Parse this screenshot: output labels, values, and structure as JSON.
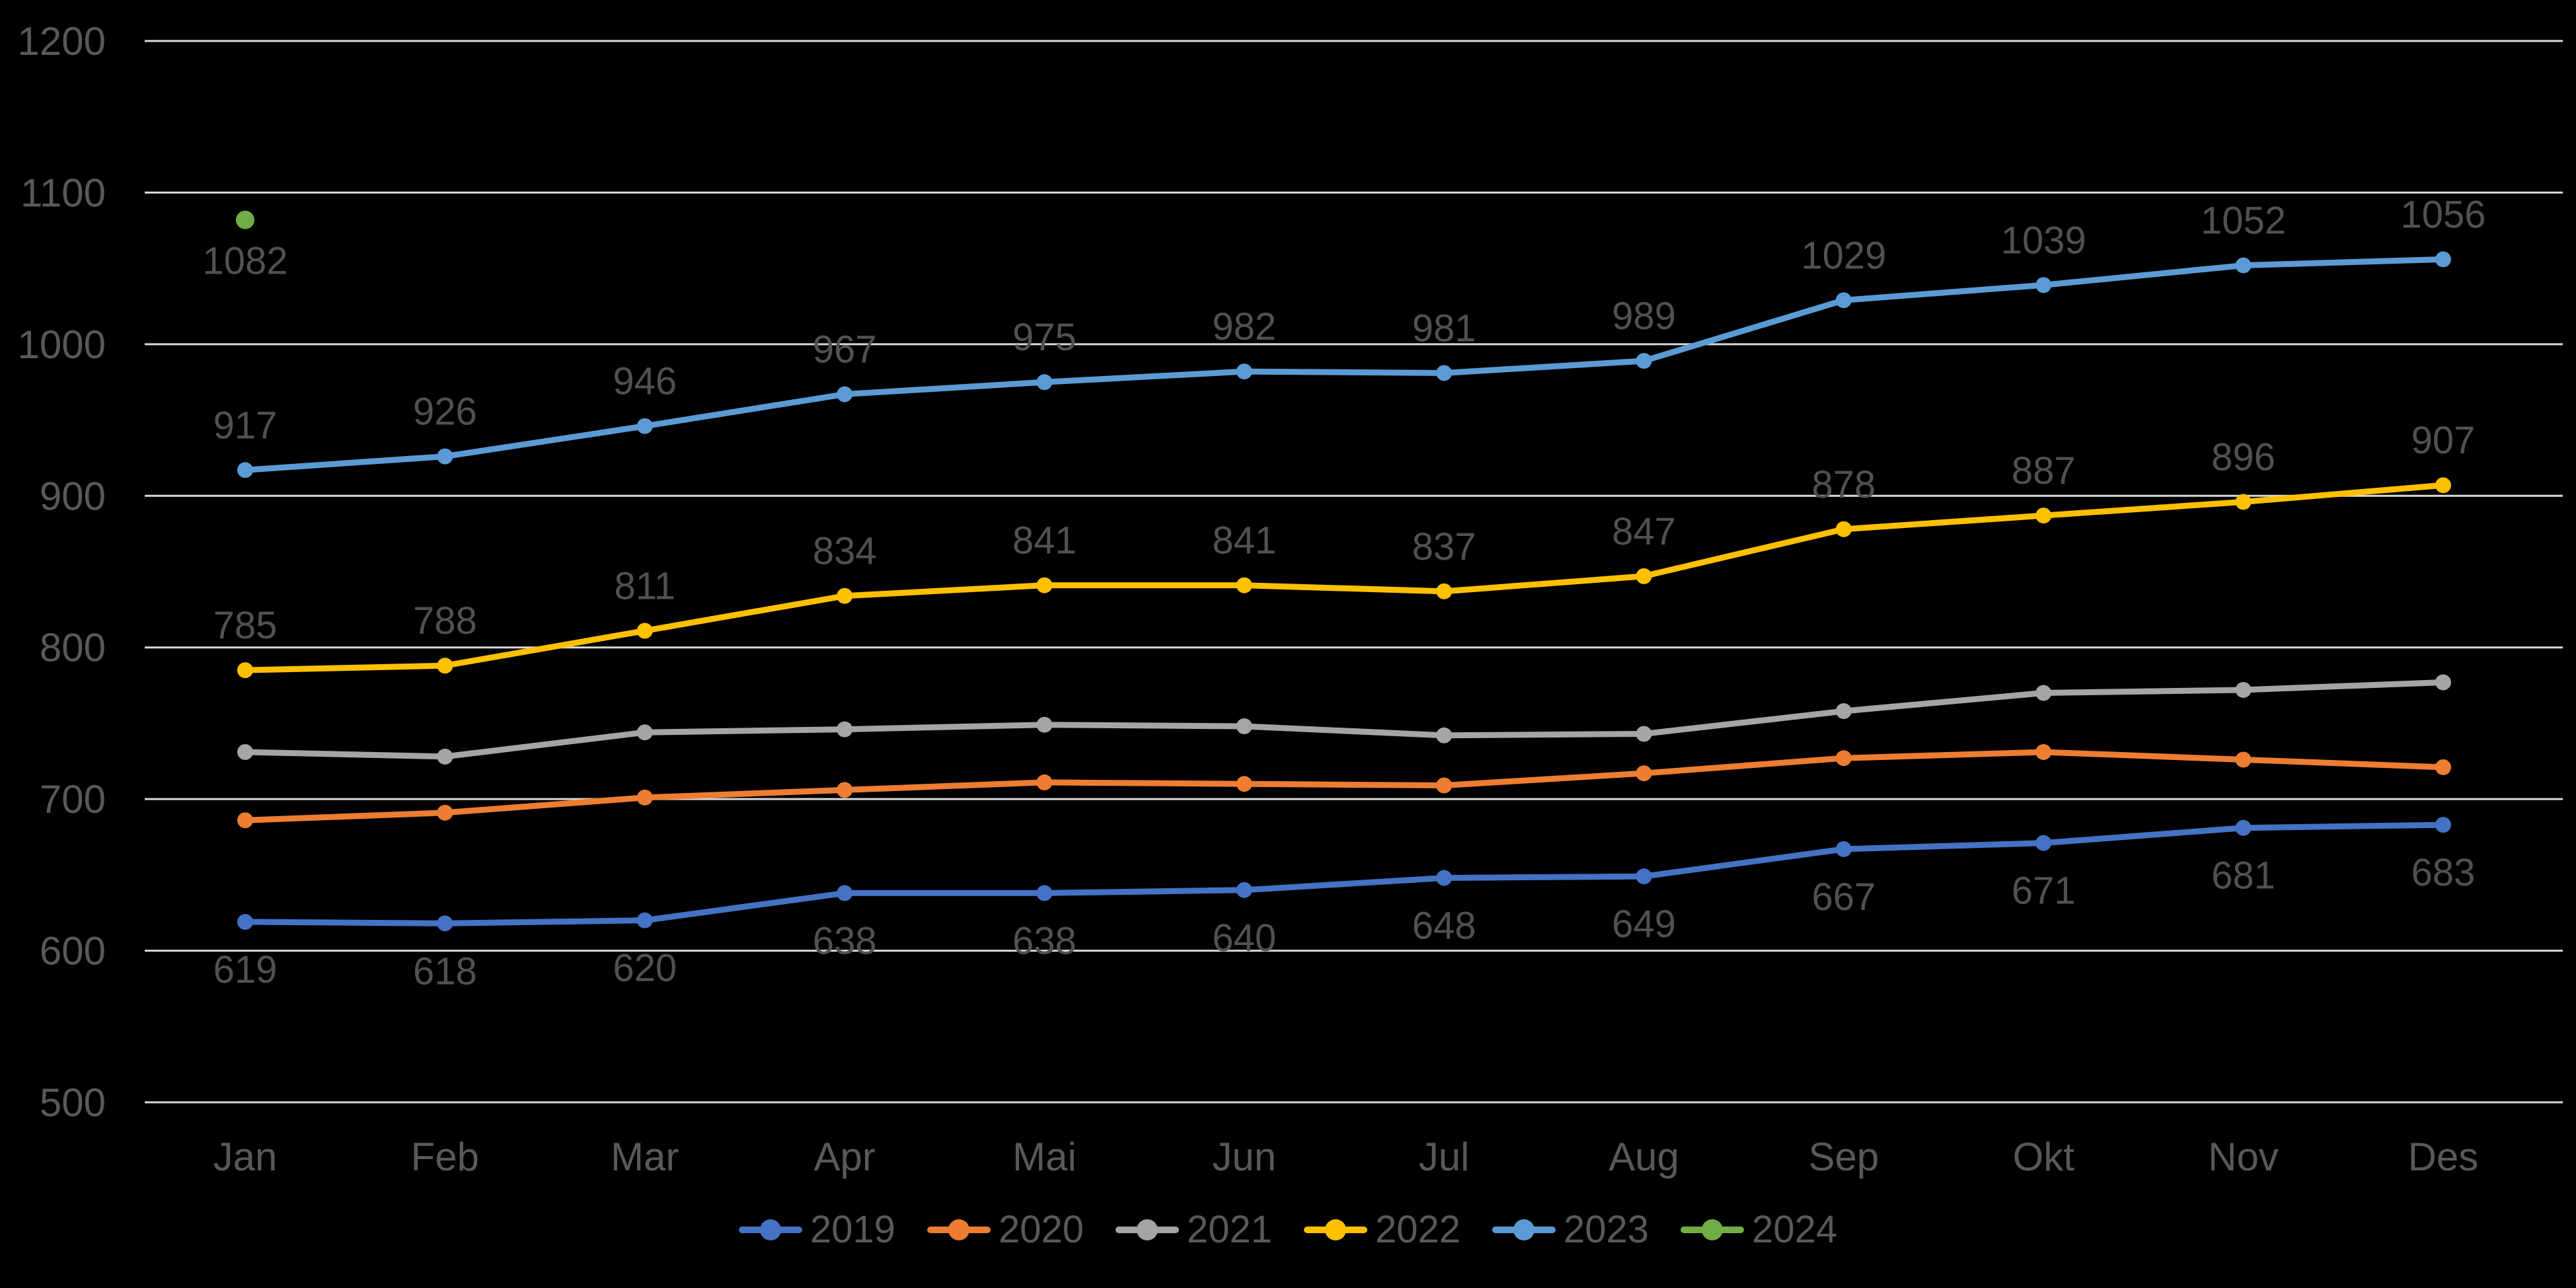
{
  "chart_data": {
    "type": "line",
    "title": "",
    "xlabel": "",
    "ylabel": "",
    "categories": [
      "Jan",
      "Feb",
      "Mar",
      "Apr",
      "Mai",
      "Jun",
      "Jul",
      "Aug",
      "Sep",
      "Okt",
      "Nov",
      "Des"
    ],
    "y_axis": {
      "min": 500,
      "max": 1200,
      "step": 100,
      "tick_labels": [
        "500",
        "600",
        "700",
        "800",
        "900",
        "1000",
        "1100",
        "1200"
      ]
    },
    "grid": true,
    "legend_position": "bottom",
    "colors": {
      "background": "#000000",
      "gridline": "#D9D9D9",
      "axis_text": "#595959",
      "data_label_text": "#515151",
      "legend_text": "#595959"
    },
    "series": [
      {
        "name": "2019",
        "color": "#4472C4",
        "labels_shown": true,
        "label_side": "below",
        "values": [
          619,
          618,
          620,
          638,
          638,
          640,
          648,
          649,
          667,
          671,
          681,
          683
        ]
      },
      {
        "name": "2020",
        "color": "#ED7D31",
        "labels_shown": false,
        "label_side": "none",
        "values": [
          686,
          691,
          701,
          706,
          711,
          710,
          709,
          717,
          727,
          731,
          726,
          721
        ]
      },
      {
        "name": "2021",
        "color": "#A5A5A5",
        "labels_shown": false,
        "label_side": "none",
        "values": [
          731,
          728,
          744,
          746,
          749,
          748,
          742,
          743,
          758,
          770,
          772,
          777
        ]
      },
      {
        "name": "2022",
        "color": "#FFC000",
        "labels_shown": true,
        "label_side": "above",
        "values": [
          785,
          788,
          811,
          834,
          841,
          841,
          837,
          847,
          878,
          887,
          896,
          907
        ]
      },
      {
        "name": "2023",
        "color": "#5B9BD5",
        "labels_shown": true,
        "label_side": "above",
        "values": [
          917,
          926,
          946,
          967,
          975,
          982,
          981,
          989,
          1029,
          1039,
          1052,
          1056
        ]
      },
      {
        "name": "2024",
        "color": "#70AD47",
        "labels_shown": true,
        "label_side": "below",
        "values": [
          1082,
          null,
          null,
          null,
          null,
          null,
          null,
          null,
          null,
          null,
          null,
          null
        ]
      }
    ]
  },
  "legend": {
    "items": [
      {
        "label": "2019"
      },
      {
        "label": "2020"
      },
      {
        "label": "2021"
      },
      {
        "label": "2022"
      },
      {
        "label": "2023"
      },
      {
        "label": "2024"
      }
    ]
  }
}
